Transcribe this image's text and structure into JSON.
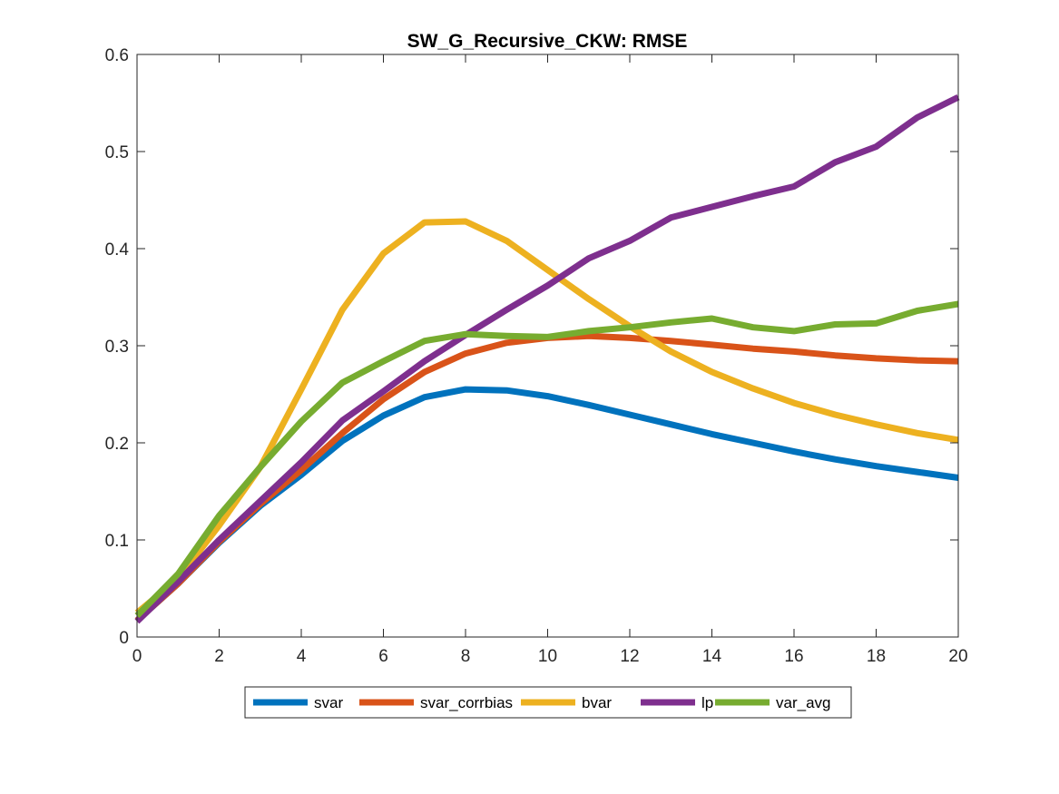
{
  "chart_data": {
    "type": "line",
    "title": "SW_G_Recursive_CKW: RMSE",
    "xlabel": "",
    "ylabel": "",
    "xlim": [
      0,
      20
    ],
    "ylim": [
      0,
      0.6
    ],
    "x_ticks": [
      "0",
      "2",
      "4",
      "6",
      "8",
      "10",
      "12",
      "14",
      "16",
      "18",
      "20"
    ],
    "y_ticks": [
      "0",
      "0.1",
      "0.2",
      "0.3",
      "0.4",
      "0.5",
      "0.6"
    ],
    "grid": false,
    "legend_position": "bottom-outside",
    "x": [
      0,
      1,
      2,
      3,
      4,
      5,
      6,
      7,
      8,
      9,
      10,
      11,
      12,
      13,
      14,
      15,
      16,
      17,
      18,
      19,
      20
    ],
    "series": [
      {
        "name": "svar",
        "color": "#0072BD",
        "values": [
          0.017,
          0.055,
          0.097,
          0.135,
          0.167,
          0.202,
          0.228,
          0.247,
          0.255,
          0.254,
          0.248,
          0.239,
          0.229,
          0.219,
          0.209,
          0.2,
          0.191,
          0.183,
          0.176,
          0.17,
          0.164
        ]
      },
      {
        "name": "svar_corrbias",
        "color": "#D95319",
        "values": [
          0.017,
          0.055,
          0.098,
          0.137,
          0.172,
          0.21,
          0.245,
          0.273,
          0.292,
          0.303,
          0.308,
          0.31,
          0.308,
          0.305,
          0.301,
          0.297,
          0.294,
          0.29,
          0.287,
          0.285,
          0.284
        ]
      },
      {
        "name": "bvar",
        "color": "#EDB120",
        "values": [
          0.025,
          0.06,
          0.115,
          0.175,
          0.255,
          0.337,
          0.395,
          0.427,
          0.428,
          0.408,
          0.378,
          0.348,
          0.32,
          0.294,
          0.273,
          0.256,
          0.241,
          0.229,
          0.219,
          0.21,
          0.203
        ]
      },
      {
        "name": "lp",
        "color": "#7E2F8E",
        "values": [
          0.016,
          0.057,
          0.1,
          0.14,
          0.18,
          0.223,
          0.253,
          0.284,
          0.311,
          0.337,
          0.362,
          0.39,
          0.408,
          0.432,
          0.443,
          0.454,
          0.464,
          0.489,
          0.505,
          0.535,
          0.556
        ]
      },
      {
        "name": "var_avg",
        "color": "#77AC30",
        "values": [
          0.022,
          0.065,
          0.125,
          0.175,
          0.222,
          0.262,
          0.284,
          0.305,
          0.312,
          0.31,
          0.309,
          0.315,
          0.319,
          0.324,
          0.328,
          0.319,
          0.315,
          0.322,
          0.323,
          0.336,
          0.343
        ]
      }
    ]
  }
}
